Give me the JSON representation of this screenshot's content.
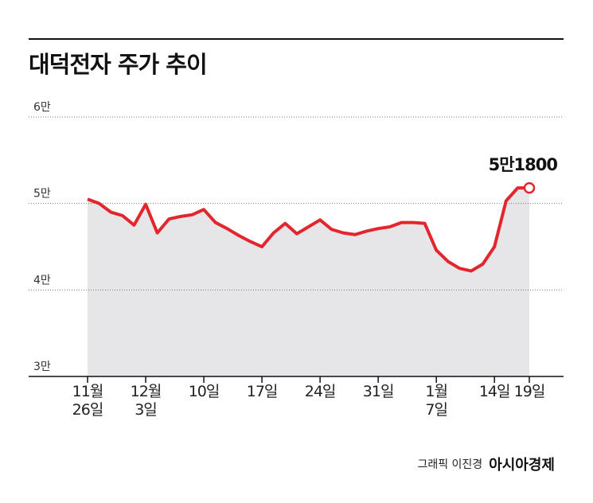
{
  "chart_data": {
    "type": "line",
    "title": "대덕전자 주가 추이",
    "credit": "그래픽 이진경",
    "brand": "아시아경제",
    "categories": [
      "11월\n26일",
      null,
      null,
      null,
      null,
      "12월\n3일",
      null,
      null,
      null,
      null,
      "10일",
      null,
      null,
      null,
      null,
      "17일",
      null,
      null,
      null,
      null,
      "24일",
      null,
      null,
      null,
      null,
      "31일",
      null,
      null,
      null,
      null,
      "1월\n7일",
      null,
      null,
      null,
      null,
      "14일",
      null,
      null,
      "19일"
    ],
    "series": [
      {
        "color": "#e3262d",
        "values": [
          50500,
          50000,
          49000,
          48600,
          47500,
          49900,
          46600,
          48200,
          48500,
          48700,
          49300,
          47800,
          47100,
          46300,
          45600,
          45000,
          46600,
          47700,
          46500,
          47300,
          48100,
          47000,
          46600,
          46400,
          46800,
          47100,
          47300,
          47800,
          47800,
          47700,
          44600,
          43300,
          42500,
          42200,
          43000,
          45000,
          50300,
          51800,
          51800
        ],
        "value_labels": [
          null,
          null,
          null,
          null,
          null,
          null,
          null,
          null,
          null,
          null,
          null,
          null,
          null,
          null,
          null,
          null,
          null,
          null,
          null,
          null,
          null,
          null,
          null,
          null,
          null,
          null,
          null,
          null,
          null,
          null,
          null,
          null,
          null,
          null,
          null,
          null,
          null,
          null,
          "5만1800"
        ]
      }
    ],
    "area_color": "#e6e6e8",
    "ylim": [
      30000,
      60000
    ],
    "yticks": [
      {
        "value": 30000,
        "label": "3만"
      },
      {
        "value": 40000,
        "label": "4만"
      },
      {
        "value": 50000,
        "label": "5만"
      },
      {
        "value": 60000,
        "label": "6만"
      }
    ],
    "grid": true
  }
}
